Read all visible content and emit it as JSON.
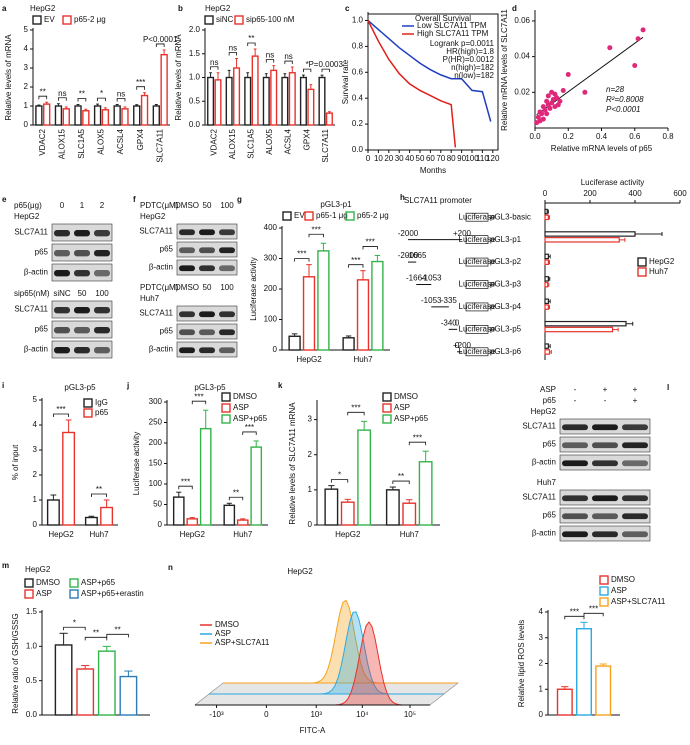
{
  "chart_data": [
    {
      "type": "bar",
      "panel_label": "a",
      "subtitle": "HepG2",
      "ylabel": "Relative levels of mRNA",
      "categories": [
        "VDAC2",
        "ALOX15",
        "SLC1A5",
        "ALOX5",
        "ACSL4",
        "GPX4",
        "SLC7A11"
      ],
      "series": [
        {
          "name": "EV",
          "color": "#222222",
          "values": [
            1,
            1,
            1,
            1,
            1,
            1,
            1
          ],
          "errors": [
            0.05,
            0.12,
            0.08,
            0.1,
            0.08,
            0.07,
            0.08
          ]
        },
        {
          "name": "p65-2 μg",
          "color": "#e8322c",
          "values": [
            1.1,
            0.85,
            0.75,
            0.8,
            0.85,
            1.55,
            3.7
          ],
          "errors": [
            0.1,
            0.1,
            0.08,
            0.1,
            0.1,
            0.15,
            0.25
          ]
        }
      ],
      "ylim": [
        0,
        5
      ],
      "yticks": [
        0,
        1,
        2,
        3,
        4,
        5
      ],
      "sig": [
        [
          "**"
        ],
        [
          "ns"
        ],
        [
          "**"
        ],
        [
          "*"
        ],
        [
          "ns"
        ],
        [
          "***"
        ],
        [
          "P<0.0001"
        ]
      ]
    },
    {
      "type": "bar",
      "panel_label": "b",
      "subtitle": "HepG2",
      "ylabel": "Relative levels of mRNA",
      "categories": [
        "VDAC2",
        "ALOX15",
        "SLC1A5",
        "ALOX5",
        "ACSL4",
        "GPX4",
        "SLC7A11"
      ],
      "series": [
        {
          "name": "siNC",
          "color": "#222222",
          "values": [
            1,
            1,
            1,
            1,
            1,
            1,
            1
          ],
          "errors": [
            0.1,
            0.15,
            0.1,
            0.08,
            0.08,
            0.05,
            0.05
          ]
        },
        {
          "name": "sip65-100 nM",
          "color": "#e8322c",
          "values": [
            0.95,
            1.2,
            1.45,
            1.15,
            1.1,
            0.75,
            0.25
          ],
          "errors": [
            0.15,
            0.2,
            0.15,
            0.1,
            0.12,
            0.1,
            0.03
          ]
        }
      ],
      "ylim": [
        0,
        2
      ],
      "yticks": [
        {
          "value": 0,
          "label": "0.0"
        },
        0.5,
        {
          "value": 1,
          "label": "1.0"
        },
        1.5,
        {
          "value": 2,
          "label": "2.0"
        }
      ],
      "sig": [
        [
          "ns"
        ],
        [
          "ns"
        ],
        [
          "**"
        ],
        [
          "ns"
        ],
        [
          "ns"
        ],
        [
          "*"
        ],
        [
          "P=0.0003"
        ]
      ]
    },
    {
      "type": "line",
      "panel_label": "c",
      "title": "Overall Survival",
      "ylabel": "Survival rate",
      "xlabel": "Months",
      "series": [
        {
          "name": "Low SLC7A11 TPM",
          "color": "#1f3fbf",
          "x": [
            0,
            10,
            20,
            30,
            40,
            50,
            60,
            70,
            80,
            90,
            100,
            110,
            118
          ],
          "values": [
            1,
            0.93,
            0.86,
            0.79,
            0.73,
            0.67,
            0.62,
            0.58,
            0.55,
            0.55,
            0.46,
            0.45,
            0.22
          ]
        },
        {
          "name": "High SLC7A11 TPM",
          "color": "#e0201b",
          "x": [
            0,
            10,
            20,
            30,
            40,
            50,
            60,
            70,
            80,
            84
          ],
          "values": [
            1,
            0.84,
            0.7,
            0.59,
            0.51,
            0.46,
            0.42,
            0.38,
            0.35,
            0.02
          ]
        }
      ],
      "stats": [
        "Logrank p=0.0011",
        "HR(high)=1.8",
        "P(HR)=0.0012",
        "n(high)=182",
        "n(low)=182"
      ],
      "xlim": [
        0,
        125
      ],
      "xticks": [
        0,
        10,
        20,
        30,
        40,
        50,
        60,
        70,
        80,
        90,
        100,
        110,
        120
      ],
      "ylim": [
        0,
        1.05
      ],
      "yticks": [
        {
          "value": 0,
          "label": "0.0"
        },
        0.2,
        0.4,
        0.6,
        0.8,
        {
          "value": 1,
          "label": "1.0"
        }
      ]
    },
    {
      "type": "scatter",
      "panel_label": "d",
      "xlabel": "Relative mRNA levels of p65",
      "ylabel": "Relative mRNA levels of SLC7A11",
      "series": [
        {
          "color": "#e0287a",
          "x": [
            0.01,
            0.02,
            0.03,
            0.03,
            0.04,
            0.05,
            0.05,
            0.06,
            0.07,
            0.07,
            0.08,
            0.08,
            0.09,
            0.1,
            0.1,
            0.11,
            0.12,
            0.12,
            0.13,
            0.14,
            0.15,
            0.17,
            0.2,
            0.3,
            0.45,
            0.6,
            0.62,
            0.65
          ],
          "values": [
            0.003,
            0.006,
            0.004,
            0.009,
            0.008,
            0.012,
            0.005,
            0.01,
            0.015,
            0.008,
            0.013,
            0.018,
            0.011,
            0.014,
            0.02,
            0.016,
            0.012,
            0.019,
            0.017,
            0.013,
            0.015,
            0.021,
            0.03,
            0.02,
            0.045,
            0.035,
            0.05,
            0.055
          ]
        }
      ],
      "annotations": [
        "n=28",
        "R²=0.8008",
        "P<0.0001"
      ],
      "xlim": [
        0,
        0.8
      ],
      "xticks": [
        {
          "value": 0,
          "label": "0.0"
        },
        0.2,
        0.4,
        0.6,
        0.8
      ],
      "ylim": [
        0,
        0.065
      ],
      "yticks": [
        0.02,
        0.04,
        0.06
      ]
    },
    {
      "type": "blot",
      "panel_label": "e",
      "blocks": [
        {
          "title": "HepG2",
          "conditions": [
            {
              "name": "p65(μg)",
              "lanes": [
                "0",
                "1",
                "2"
              ]
            }
          ],
          "rows": [
            "SLC7A11",
            "p65",
            "β-actin"
          ]
        },
        {
          "conditions": [
            {
              "name": "sip65(nM)",
              "lanes": [
                "siNC",
                "50",
                "100"
              ]
            }
          ],
          "rows": [
            "SLC7A11",
            "p65",
            "β-actin"
          ]
        }
      ]
    },
    {
      "type": "blot",
      "panel_label": "f",
      "blocks": [
        {
          "title": "HepG2",
          "conditions": [
            {
              "name": "PDTC(μM)",
              "lanes": [
                "DMSO",
                "50",
                "100"
              ]
            }
          ],
          "rows": [
            "SLC7A11",
            "p65",
            "β-actin"
          ]
        },
        {
          "title": "Huh7",
          "conditions": [
            {
              "name": "PDTC(μM)",
              "lanes": [
                "DMSO",
                "50",
                "100"
              ]
            }
          ],
          "rows": [
            "SLC7A11",
            "p65",
            "β-actin"
          ]
        }
      ]
    },
    {
      "type": "bar",
      "panel_label": "g",
      "title": "pGL3-p1",
      "ylabel": "Luciferase activity",
      "categories": [
        "HepG2",
        "Huh7"
      ],
      "series": [
        {
          "name": "EV",
          "color": "#222222",
          "values": [
            45,
            40
          ],
          "errors": [
            8,
            6
          ]
        },
        {
          "name": "p65-1 μg",
          "color": "#e8322c",
          "values": [
            240,
            230
          ],
          "errors": [
            40,
            30
          ]
        },
        {
          "name": "p65-2 μg",
          "color": "#33b34a",
          "values": [
            325,
            290
          ],
          "errors": [
            25,
            20
          ]
        }
      ],
      "ylim": [
        0,
        400
      ],
      "yticks": [
        0,
        100,
        200,
        300,
        400
      ],
      "sig": [
        [
          "***",
          "***"
        ],
        [
          "***",
          "***"
        ]
      ]
    },
    {
      "type": "hbar",
      "panel_label": "h",
      "title": "Luciferase activity",
      "promoter_label": "SLC7A11 promoter",
      "reporter_label": "Luciferase",
      "categories": [
        "pGL3-basic",
        "pGL3-p1",
        "pGL3-p2",
        "pGL3-p3",
        "pGL3-p4",
        "pGL3-p5",
        "pGL3-p6"
      ],
      "constructs": [
        null,
        [
          -2000,
          {
            "value": 200,
            "label": "+200"
          }
        ],
        [
          -2000,
          -1665
        ],
        [
          -1664,
          -1053
        ],
        [
          -1053,
          -335
        ],
        [
          -340,
          0
        ],
        [
          0,
          {
            "value": 200,
            "label": "+200"
          }
        ]
      ],
      "series": [
        {
          "name": "HepG2",
          "color": "#222222",
          "values": [
            10,
            400,
            15,
            15,
            15,
            360,
            15
          ],
          "errors": [
            5,
            120,
            8,
            6,
            8,
            30,
            8
          ]
        },
        {
          "name": "Huh7",
          "color": "#e8322c",
          "values": [
            15,
            330,
            15,
            12,
            15,
            300,
            20
          ],
          "errors": [
            5,
            25,
            5,
            5,
            5,
            25,
            8
          ]
        }
      ],
      "xlim": [
        0,
        600
      ],
      "xticks": [
        0,
        200,
        400,
        600
      ]
    },
    {
      "type": "bar",
      "panel_label": "i",
      "title": "pGL3-p5",
      "ylabel": "% of input",
      "categories": [
        "HepG2",
        "Huh7"
      ],
      "series": [
        {
          "name": "IgG",
          "color": "#222222",
          "values": [
            1.0,
            0.3
          ],
          "errors": [
            0.2,
            0.05
          ]
        },
        {
          "name": "p65",
          "color": "#e8322c",
          "values": [
            3.7,
            0.7
          ],
          "errors": [
            0.5,
            0.3
          ]
        }
      ],
      "ylim": [
        0,
        5
      ],
      "yticks": [
        0,
        1,
        2,
        3,
        4,
        5
      ],
      "sig": [
        [
          "***"
        ],
        [
          "**"
        ]
      ]
    },
    {
      "type": "bar",
      "panel_label": "j",
      "title": "pGL3-p5",
      "ylabel": "Luciferase activity",
      "categories": [
        "HepG2",
        "Huh7"
      ],
      "series": [
        {
          "name": "DMSO",
          "color": "#222222",
          "values": [
            68,
            48
          ],
          "errors": [
            12,
            5
          ]
        },
        {
          "name": "ASP",
          "color": "#e8322c",
          "values": [
            15,
            12
          ],
          "errors": [
            3,
            3
          ]
        },
        {
          "name": "ASP+p65",
          "color": "#33b34a",
          "values": [
            235,
            190
          ],
          "errors": [
            45,
            15
          ]
        }
      ],
      "ylim": [
        0,
        300
      ],
      "yticks": [
        0,
        50,
        100,
        150,
        200,
        250,
        300
      ],
      "sig": [
        [
          "***",
          "***"
        ],
        [
          "**",
          "***"
        ]
      ]
    },
    {
      "type": "bar",
      "panel_label": "k",
      "ylabel": "Relative levels of SLC7A11 mRNA",
      "categories": [
        "HepG2",
        "Huh7"
      ],
      "series": [
        {
          "name": "DMSO",
          "color": "#222222",
          "values": [
            1.02,
            1.0
          ],
          "errors": [
            0.1,
            0.08
          ]
        },
        {
          "name": "ASP",
          "color": "#e8322c",
          "values": [
            0.65,
            0.62
          ],
          "errors": [
            0.08,
            0.1
          ]
        },
        {
          "name": "ASP+p65",
          "color": "#33b34a",
          "values": [
            2.7,
            1.8
          ],
          "errors": [
            0.25,
            0.3
          ]
        }
      ],
      "ylim": [
        0,
        3.5
      ],
      "yticks": [
        0,
        1,
        2,
        3
      ],
      "sig": [
        [
          "*",
          "***"
        ],
        [
          "**",
          "***"
        ]
      ]
    },
    {
      "type": "blot",
      "panel_label": "l",
      "blocks": [
        {
          "conditions": [
            {
              "name": "ASP",
              "lanes": [
                "-",
                "+",
                "+"
              ]
            },
            {
              "name": "p65",
              "lanes": [
                "-",
                "-",
                "+"
              ]
            }
          ],
          "title": "HepG2",
          "rows": [
            "SLC7A11",
            "p65",
            "β-actin"
          ]
        },
        {
          "title": "Huh7",
          "rows": [
            "SLC7A11",
            "p65",
            "β-actin"
          ]
        }
      ]
    },
    {
      "type": "bar",
      "panel_label": "m",
      "subtitle": "HepG2",
      "ylabel": "Relative ratio of GSH/GSSG",
      "categories": [
        null
      ],
      "series": [
        {
          "name": "DMSO",
          "color": "#222222",
          "values": [
            1.02
          ],
          "errors": [
            0.17
          ]
        },
        {
          "name": "ASP",
          "color": "#e8322c",
          "values": [
            0.67
          ],
          "errors": [
            0.05
          ]
        },
        {
          "name": "ASP+p65",
          "color": "#33b34a",
          "values": [
            0.93
          ],
          "errors": [
            0.07
          ]
        },
        {
          "name": "ASP+p65+erastin",
          "color": "#2b7bb9",
          "values": [
            0.56
          ],
          "errors": [
            0.08
          ]
        }
      ],
      "ylim": [
        0,
        1.5
      ],
      "yticks": [
        {
          "value": 0,
          "label": "0.0"
        },
        0.5,
        {
          "value": 1,
          "label": "1.0"
        },
        1.5
      ],
      "sig": [
        [
          "*",
          "**",
          "**"
        ]
      ]
    },
    {
      "type": "flow",
      "panel_label": "n",
      "title": "HepG2",
      "xlabel": "FITC-A",
      "xscale": "symlog",
      "series": [
        {
          "name": "DMSO",
          "color": "#e8322c"
        },
        {
          "name": "ASP",
          "color": "#29abe2"
        },
        {
          "name": "ASP+SLC7A11",
          "color": "#f7a21b"
        }
      ],
      "xlim": [
        -3000,
        262144
      ],
      "xticks": [
        {
          "value": -1000,
          "label": "-10³"
        },
        0,
        {
          "value": 1000,
          "label": "10³"
        },
        {
          "value": 10000,
          "label": "10⁴"
        },
        {
          "value": 100000,
          "label": "10⁵"
        }
      ]
    },
    {
      "type": "bar",
      "ylabel": "Relative lipid ROS levels",
      "categories": [
        null
      ],
      "series": [
        {
          "name": "DMSO",
          "color": "#e8322c",
          "values": [
            1.0
          ],
          "errors": [
            0.1
          ]
        },
        {
          "name": "ASP",
          "color": "#29abe2",
          "values": [
            3.35
          ],
          "errors": [
            0.25
          ]
        },
        {
          "name": "ASP+SLC7A11",
          "color": "#f7a21b",
          "values": [
            1.9
          ],
          "errors": [
            0.08
          ]
        }
      ],
      "ylim": [
        0,
        4
      ],
      "yticks": [
        0,
        1,
        2,
        3,
        4
      ],
      "sig": [
        [
          "***",
          "***"
        ]
      ]
    }
  ]
}
